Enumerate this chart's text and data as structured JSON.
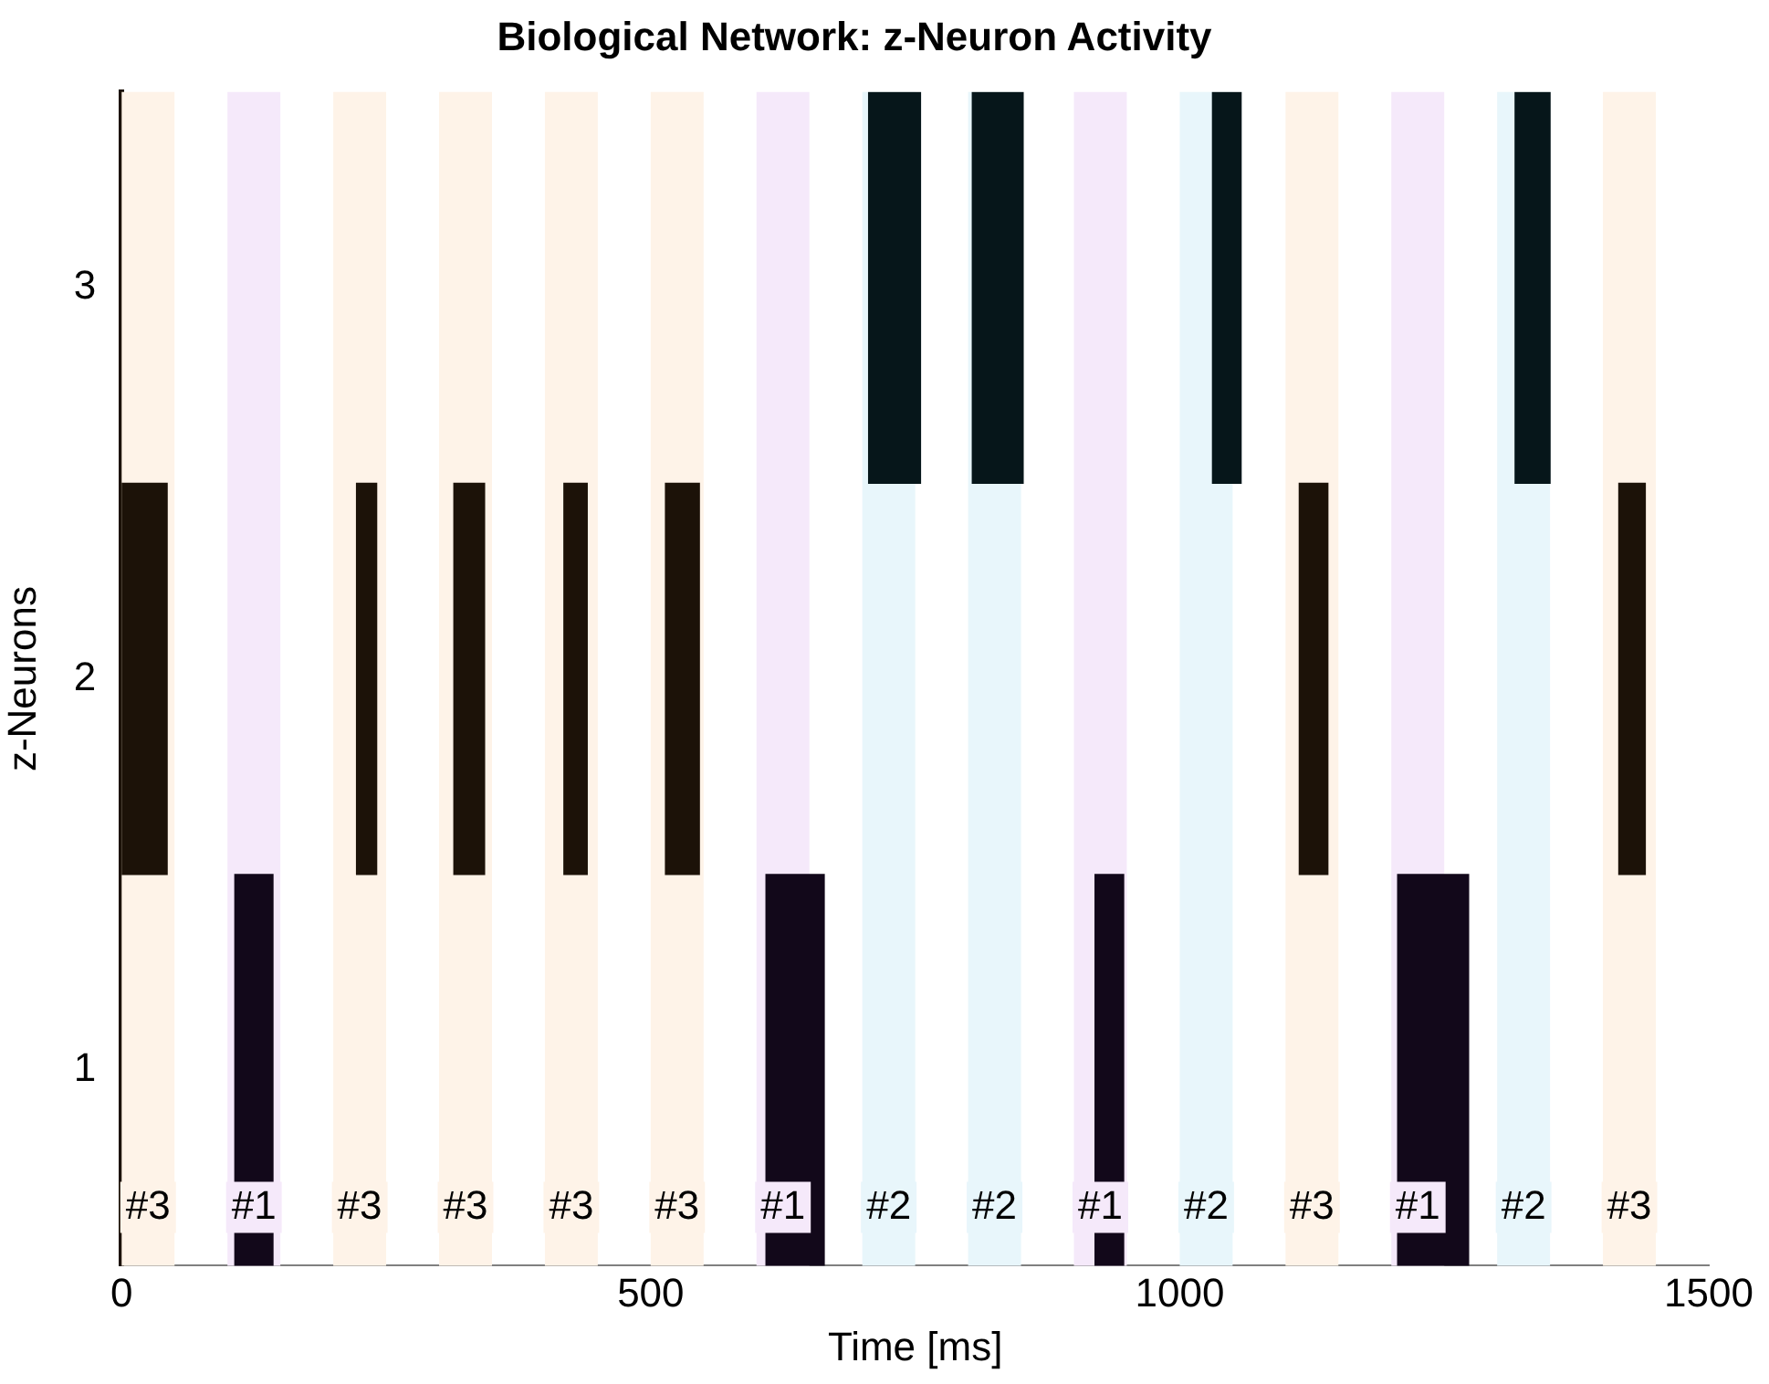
{
  "chart_data": {
    "type": "bar",
    "orientation": "horizontal",
    "title": "Biological Network: z-Neuron Activity",
    "xlabel": "Time [ms]",
    "ylabel": "z-Neurons",
    "categories": [
      "3",
      "2",
      "1"
    ],
    "xlim": [
      0,
      1500
    ],
    "xticks": [
      0,
      500,
      1000,
      1500
    ],
    "grid": false,
    "legend": false,
    "series": [
      {
        "values": [
          49,
          43,
          36
        ],
        "base": [
          706,
          0,
          107
        ],
        "colors": [
          "#06161a",
          "#1c1208",
          "#12081a"
        ]
      },
      {
        "values": [
          48,
          19,
          55
        ],
        "base": [
          804,
          222,
          609
        ],
        "colors": [
          "#06161a",
          "#1c1208",
          "#12081a"
        ]
      },
      {
        "values": [
          27,
          29,
          27
        ],
        "base": [
          1031,
          314,
          920
        ],
        "colors": [
          "#06161a",
          "#1c1208",
          "#12081a"
        ]
      },
      {
        "values": [
          33,
          22,
          67
        ],
        "base": [
          1317,
          418,
          1206
        ],
        "colors": [
          "#06161a",
          "#1c1208",
          "#12081a"
        ]
      },
      {
        "values": [
          null,
          32,
          null
        ],
        "base": [
          null,
          514,
          null
        ],
        "colors": [
          "#06161a",
          "#1c1208",
          "#12081a"
        ]
      },
      {
        "values": [
          null,
          27,
          null
        ],
        "base": [
          null,
          1113,
          null
        ],
        "colors": [
          "#06161a",
          "#1c1208",
          "#12081a"
        ]
      },
      {
        "values": [
          null,
          25,
          null
        ],
        "base": [
          null,
          1415,
          null
        ],
        "colors": [
          "#06161a",
          "#1c1208",
          "#12081a"
        ]
      }
    ],
    "bands": [
      {
        "axis": "x",
        "from": 0,
        "to": 50,
        "label": "#3",
        "color": "#fef3e8"
      },
      {
        "axis": "x",
        "from": 100,
        "to": 150,
        "label": "#1",
        "color": "#f5e9fa"
      },
      {
        "axis": "x",
        "from": 200,
        "to": 250,
        "label": "#3",
        "color": "#fef3e8"
      },
      {
        "axis": "x",
        "from": 300,
        "to": 350,
        "label": "#3",
        "color": "#fef3e8"
      },
      {
        "axis": "x",
        "from": 400,
        "to": 450,
        "label": "#3",
        "color": "#fef3e8"
      },
      {
        "axis": "x",
        "from": 500,
        "to": 550,
        "label": "#3",
        "color": "#fef3e8"
      },
      {
        "axis": "x",
        "from": 600,
        "to": 650,
        "label": "#1",
        "color": "#f5e9fa"
      },
      {
        "axis": "x",
        "from": 700,
        "to": 750,
        "label": "#2",
        "color": "#e8f6fb"
      },
      {
        "axis": "x",
        "from": 800,
        "to": 850,
        "label": "#2",
        "color": "#e8f6fb"
      },
      {
        "axis": "x",
        "from": 900,
        "to": 950,
        "label": "#1",
        "color": "#f5e9fa"
      },
      {
        "axis": "x",
        "from": 1000,
        "to": 1050,
        "label": "#2",
        "color": "#e8f6fb"
      },
      {
        "axis": "x",
        "from": 1100,
        "to": 1150,
        "label": "#3",
        "color": "#fef3e8"
      },
      {
        "axis": "x",
        "from": 1200,
        "to": 1250,
        "label": "#1",
        "color": "#f5e9fa"
      },
      {
        "axis": "x",
        "from": 1300,
        "to": 1350,
        "label": "#2",
        "color": "#e8f6fb"
      },
      {
        "axis": "x",
        "from": 1400,
        "to": 1450,
        "label": "#3",
        "color": "#fef3e8"
      }
    ]
  }
}
